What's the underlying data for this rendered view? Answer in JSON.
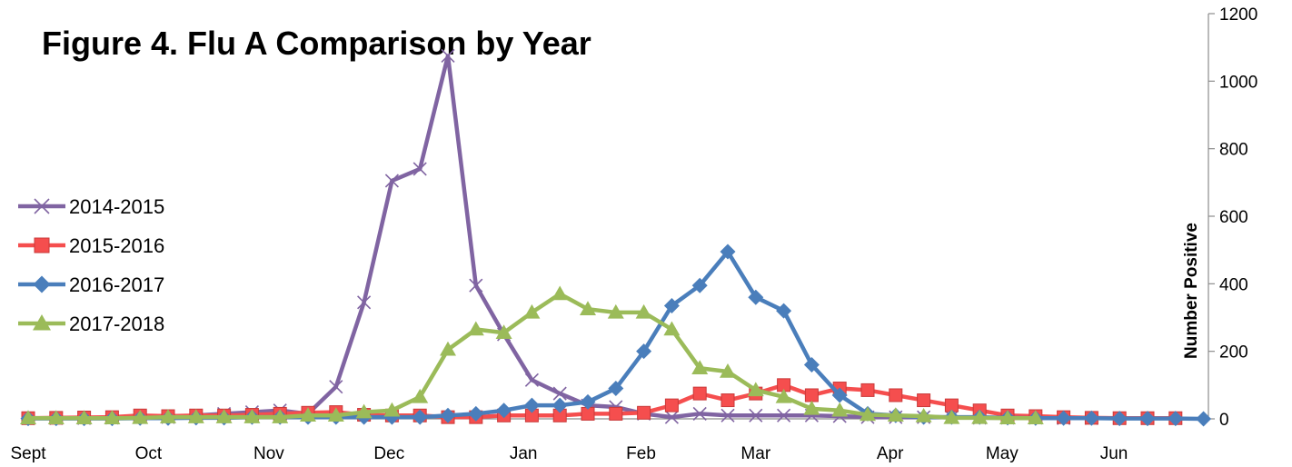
{
  "chart_data": {
    "type": "line",
    "title": "Figure 4. Flu A Comparison by Year",
    "xlabel": "",
    "ylabel": "Number Positive",
    "ylim": [
      0,
      1200
    ],
    "y_ticks": [
      "0",
      "200",
      "400",
      "600",
      "800",
      "1000",
      "1200"
    ],
    "y_axis_side": "right",
    "grid": false,
    "legend_position": "left",
    "x_week_count": 43,
    "x_tick_labels": [
      {
        "label": "Sept",
        "week": 0
      },
      {
        "label": "Oct",
        "week": 4.3
      },
      {
        "label": "Nov",
        "week": 8.6
      },
      {
        "label": "Dec",
        "week": 12.9
      },
      {
        "label": "Jan",
        "week": 17.7
      },
      {
        "label": "Feb",
        "week": 21.9
      },
      {
        "label": "Mar",
        "week": 26
      },
      {
        "label": "Apr",
        "week": 30.8
      },
      {
        "label": "May",
        "week": 34.8
      },
      {
        "label": "Jun",
        "week": 38.8
      }
    ],
    "series": [
      {
        "name": "2014-2015",
        "color": "#8064a2",
        "marker": "x",
        "values": [
          2,
          2,
          2,
          3,
          5,
          5,
          10,
          15,
          20,
          25,
          15,
          95,
          345,
          705,
          740,
          1075,
          395,
          250,
          115,
          75,
          40,
          35,
          15,
          5,
          15,
          10,
          10,
          10,
          10,
          8,
          5,
          5,
          5,
          5,
          3,
          3,
          3,
          2,
          2,
          2,
          2,
          2
        ]
      },
      {
        "name": "2015-2016",
        "color": "#f54e4e",
        "marker": "square",
        "values": [
          2,
          3,
          4,
          5,
          10,
          8,
          10,
          10,
          12,
          15,
          18,
          20,
          12,
          10,
          10,
          5,
          5,
          10,
          10,
          10,
          15,
          15,
          18,
          40,
          75,
          55,
          75,
          100,
          70,
          90,
          85,
          70,
          55,
          40,
          25,
          10,
          8,
          5,
          3,
          2,
          2,
          2
        ]
      },
      {
        "name": "2016-2017",
        "color": "#4a7ebb",
        "marker": "diamond",
        "values": [
          1,
          1,
          1,
          1,
          2,
          2,
          3,
          3,
          5,
          5,
          5,
          5,
          5,
          5,
          5,
          10,
          15,
          25,
          40,
          40,
          50,
          90,
          200,
          335,
          395,
          495,
          360,
          320,
          160,
          70,
          15,
          10,
          5,
          5,
          5,
          3,
          2,
          2,
          2,
          1,
          1,
          1,
          0
        ]
      },
      {
        "name": "2017-2018",
        "color": "#9bbb59",
        "marker": "triangle",
        "values": [
          2,
          2,
          2,
          2,
          3,
          5,
          5,
          5,
          5,
          5,
          10,
          10,
          20,
          25,
          65,
          205,
          265,
          255,
          315,
          370,
          325,
          315,
          315,
          265,
          150,
          140,
          85,
          65,
          30,
          25,
          12,
          10,
          8,
          3,
          3,
          2,
          2
        ]
      }
    ]
  }
}
